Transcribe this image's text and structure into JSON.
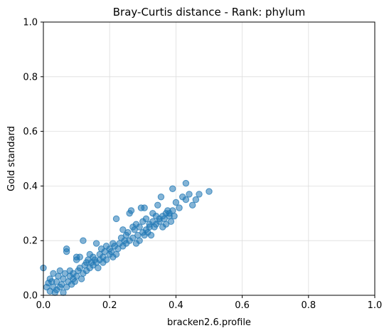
{
  "chart_data": {
    "type": "scatter",
    "title": "Bray-Curtis distance - Rank: phylum",
    "xlabel": "bracken2.6.profile",
    "ylabel": "Gold standard",
    "xlim": [
      0,
      1
    ],
    "ylim": [
      0,
      1
    ],
    "xticks": [
      0,
      0.2,
      0.4,
      0.6,
      0.8,
      1
    ],
    "yticks": [
      0,
      0.2,
      0.4,
      0.6,
      0.8,
      1
    ],
    "xtick_labels": [
      "0.0",
      "0.2",
      "0.4",
      "0.6",
      "0.8",
      "1.0"
    ],
    "ytick_labels": [
      "0.0",
      "0.2",
      "0.4",
      "0.6",
      "0.8",
      "1.0"
    ],
    "grid": true,
    "point_color": "#1f77b4",
    "points": [
      [
        0.0,
        0.1
      ],
      [
        0.01,
        0.03
      ],
      [
        0.015,
        0.045
      ],
      [
        0.02,
        0.015
      ],
      [
        0.02,
        0.06
      ],
      [
        0.025,
        0.05
      ],
      [
        0.03,
        0.03
      ],
      [
        0.03,
        0.08
      ],
      [
        0.035,
        0.01
      ],
      [
        0.04,
        0.02
      ],
      [
        0.04,
        0.05
      ],
      [
        0.045,
        0.07
      ],
      [
        0.05,
        0.03
      ],
      [
        0.05,
        0.09
      ],
      [
        0.055,
        0.04
      ],
      [
        0.06,
        0.01
      ],
      [
        0.06,
        0.06
      ],
      [
        0.065,
        0.08
      ],
      [
        0.07,
        0.03
      ],
      [
        0.07,
        0.17
      ],
      [
        0.07,
        0.16
      ],
      [
        0.075,
        0.05
      ],
      [
        0.08,
        0.07
      ],
      [
        0.08,
        0.09
      ],
      [
        0.085,
        0.04
      ],
      [
        0.09,
        0.06
      ],
      [
        0.09,
        0.08
      ],
      [
        0.095,
        0.05
      ],
      [
        0.1,
        0.07
      ],
      [
        0.1,
        0.13
      ],
      [
        0.1,
        0.14
      ],
      [
        0.105,
        0.09
      ],
      [
        0.11,
        0.1
      ],
      [
        0.11,
        0.14
      ],
      [
        0.115,
        0.06
      ],
      [
        0.12,
        0.08
      ],
      [
        0.12,
        0.2
      ],
      [
        0.125,
        0.11
      ],
      [
        0.13,
        0.09
      ],
      [
        0.13,
        0.12
      ],
      [
        0.135,
        0.13
      ],
      [
        0.14,
        0.1
      ],
      [
        0.14,
        0.15
      ],
      [
        0.145,
        0.12
      ],
      [
        0.15,
        0.11
      ],
      [
        0.15,
        0.14
      ],
      [
        0.155,
        0.13
      ],
      [
        0.16,
        0.12
      ],
      [
        0.16,
        0.19
      ],
      [
        0.165,
        0.1
      ],
      [
        0.17,
        0.13
      ],
      [
        0.17,
        0.15
      ],
      [
        0.175,
        0.17
      ],
      [
        0.18,
        0.12
      ],
      [
        0.18,
        0.14
      ],
      [
        0.185,
        0.16
      ],
      [
        0.19,
        0.13
      ],
      [
        0.19,
        0.18
      ],
      [
        0.2,
        0.15
      ],
      [
        0.2,
        0.17
      ],
      [
        0.205,
        0.16
      ],
      [
        0.21,
        0.14
      ],
      [
        0.21,
        0.19
      ],
      [
        0.215,
        0.18
      ],
      [
        0.22,
        0.15
      ],
      [
        0.22,
        0.28
      ],
      [
        0.225,
        0.17
      ],
      [
        0.23,
        0.19
      ],
      [
        0.235,
        0.21
      ],
      [
        0.24,
        0.18
      ],
      [
        0.24,
        0.24
      ],
      [
        0.245,
        0.2
      ],
      [
        0.25,
        0.22
      ],
      [
        0.25,
        0.19
      ],
      [
        0.255,
        0.23
      ],
      [
        0.26,
        0.2
      ],
      [
        0.26,
        0.3
      ],
      [
        0.265,
        0.31
      ],
      [
        0.27,
        0.21
      ],
      [
        0.27,
        0.25
      ],
      [
        0.275,
        0.24
      ],
      [
        0.28,
        0.19
      ],
      [
        0.28,
        0.26
      ],
      [
        0.285,
        0.22
      ],
      [
        0.29,
        0.2
      ],
      [
        0.29,
        0.25
      ],
      [
        0.295,
        0.32
      ],
      [
        0.3,
        0.23
      ],
      [
        0.3,
        0.27
      ],
      [
        0.305,
        0.22
      ],
      [
        0.305,
        0.32
      ],
      [
        0.31,
        0.24
      ],
      [
        0.31,
        0.28
      ],
      [
        0.315,
        0.23
      ],
      [
        0.32,
        0.26
      ],
      [
        0.32,
        0.25
      ],
      [
        0.325,
        0.22
      ],
      [
        0.33,
        0.27
      ],
      [
        0.33,
        0.3
      ],
      [
        0.335,
        0.25
      ],
      [
        0.34,
        0.26
      ],
      [
        0.34,
        0.29
      ],
      [
        0.345,
        0.33
      ],
      [
        0.35,
        0.28
      ],
      [
        0.35,
        0.27
      ],
      [
        0.355,
        0.36
      ],
      [
        0.36,
        0.29
      ],
      [
        0.36,
        0.25
      ],
      [
        0.365,
        0.28
      ],
      [
        0.37,
        0.26
      ],
      [
        0.37,
        0.3
      ],
      [
        0.375,
        0.31
      ],
      [
        0.38,
        0.29
      ],
      [
        0.38,
        0.3
      ],
      [
        0.385,
        0.27
      ],
      [
        0.39,
        0.39
      ],
      [
        0.39,
        0.31
      ],
      [
        0.395,
        0.29
      ],
      [
        0.4,
        0.34
      ],
      [
        0.41,
        0.32
      ],
      [
        0.42,
        0.36
      ],
      [
        0.43,
        0.35
      ],
      [
        0.43,
        0.41
      ],
      [
        0.44,
        0.37
      ],
      [
        0.45,
        0.33
      ],
      [
        0.46,
        0.35
      ],
      [
        0.47,
        0.37
      ],
      [
        0.5,
        0.38
      ]
    ]
  }
}
